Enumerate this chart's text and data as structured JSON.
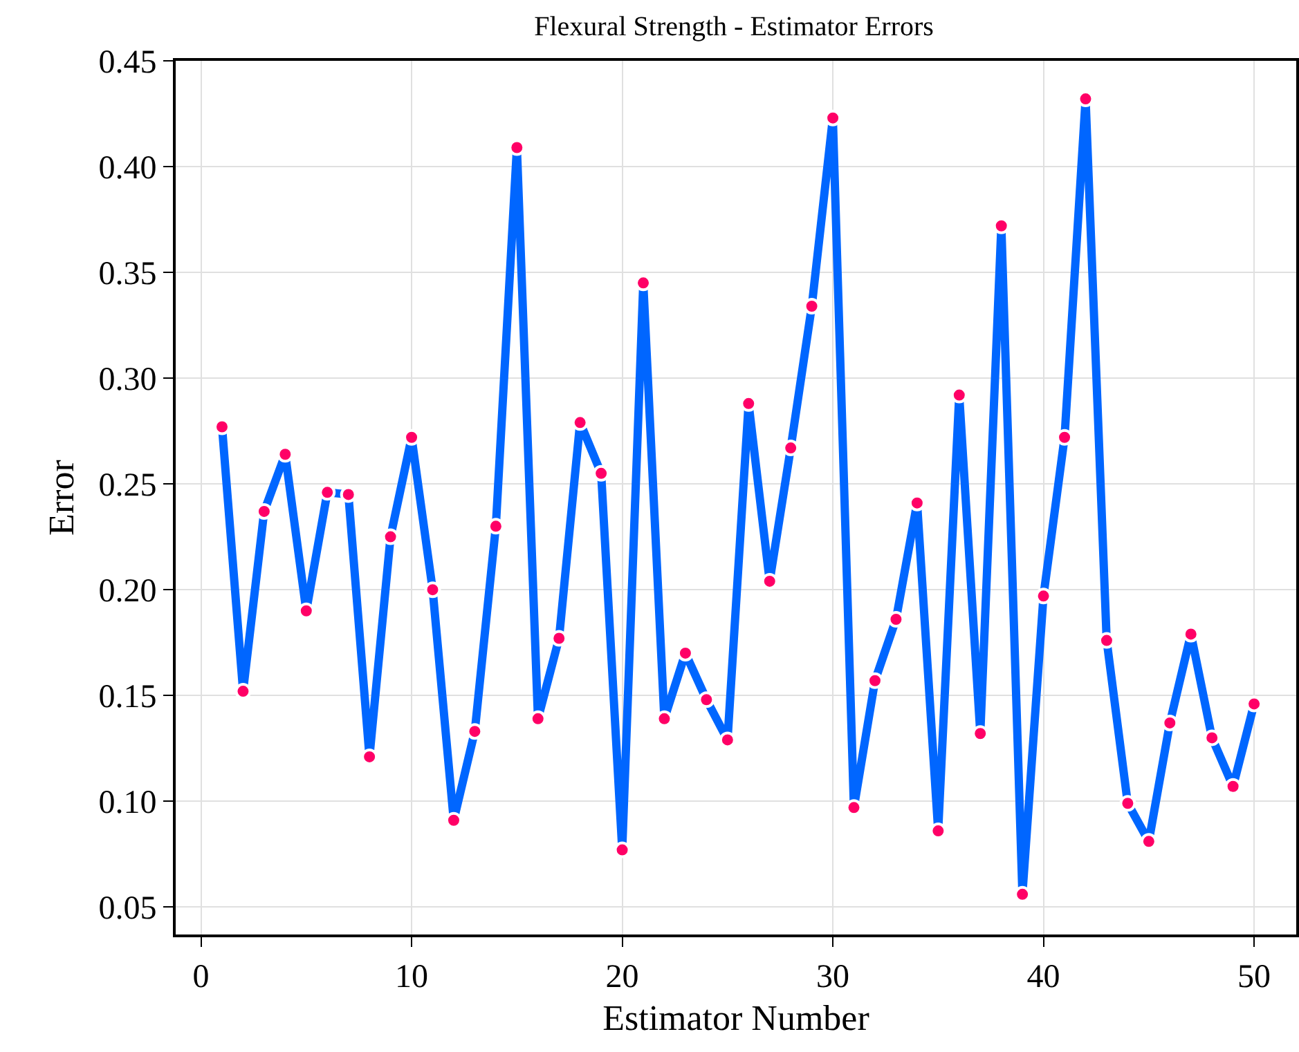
{
  "chart_data": {
    "type": "line",
    "title": "Flexural Strength - Estimator Errors",
    "xlabel": "Estimator Number",
    "ylabel": "Error",
    "x": [
      1,
      2,
      3,
      4,
      5,
      6,
      7,
      8,
      9,
      10,
      11,
      12,
      13,
      14,
      15,
      16,
      17,
      18,
      19,
      20,
      21,
      22,
      23,
      24,
      25,
      26,
      27,
      28,
      29,
      30,
      31,
      32,
      33,
      34,
      35,
      36,
      37,
      38,
      39,
      40,
      41,
      42,
      43,
      44,
      45,
      46,
      47,
      48,
      49,
      50
    ],
    "series": [
      {
        "color": "#0066ff",
        "colors": [
          "#ff0066",
          "#ff0066",
          "#ff0066",
          "#ff0066",
          "#ff0066",
          "#ff0066",
          "#ff0066",
          "#ff0066",
          "#ff0066",
          "#ff0066",
          "#ff0066",
          "#ff0066",
          "#ff0066",
          "#ff0066",
          "#ff0066",
          "#ff0066",
          "#ff0066",
          "#ff0066",
          "#ff0066",
          "#ff0066",
          "#ff0066",
          "#ff0066",
          "#ff0066",
          "#ff0066",
          "#ff0066",
          "#ff0066",
          "#ff0066",
          "#ff0066",
          "#ff0066",
          "#ff0066",
          "#ff0066",
          "#ff0066",
          "#ff0066",
          "#ff0066",
          "#ff0066",
          "#ff0066",
          "#ff0066",
          "#ff0066",
          "#ff0066",
          "#ff0066",
          "#ff0066",
          "#ff0066",
          "#ff0066",
          "#ff0066",
          "#ff0066",
          "#ff0066",
          "#ff0066",
          "#ff0066",
          "#ff0066",
          "#ff0066"
        ],
        "values": [
          0.277,
          0.152,
          0.237,
          0.264,
          0.19,
          0.246,
          0.245,
          0.121,
          0.225,
          0.272,
          0.2,
          0.091,
          0.133,
          0.23,
          0.409,
          0.139,
          0.177,
          0.279,
          0.255,
          0.077,
          0.345,
          0.139,
          0.17,
          0.148,
          0.129,
          0.288,
          0.204,
          0.267,
          0.334,
          0.423,
          0.097,
          0.157,
          0.186,
          0.241,
          0.086,
          0.292,
          0.132,
          0.372,
          0.056,
          0.197,
          0.272,
          0.432,
          0.176,
          0.099,
          0.081,
          0.137,
          0.179,
          0.13,
          0.107,
          0.146
        ]
      }
    ],
    "xlim": [
      -1.2,
      52
    ],
    "xticks": [
      0,
      10,
      20,
      30,
      40,
      50
    ],
    "ylim": [
      0.037,
      0.45
    ],
    "yticks": [
      0.05,
      {
        "value": 0.1,
        "label": "0.10"
      },
      0.15,
      {
        "value": 0.2,
        "label": "0.20"
      },
      0.25,
      {
        "value": 0.3,
        "label": "0.30"
      },
      0.35,
      {
        "value": 0.4,
        "label": "0.40"
      },
      0.45
    ],
    "grid": true,
    "marker": "circle",
    "line_style": "solid"
  }
}
